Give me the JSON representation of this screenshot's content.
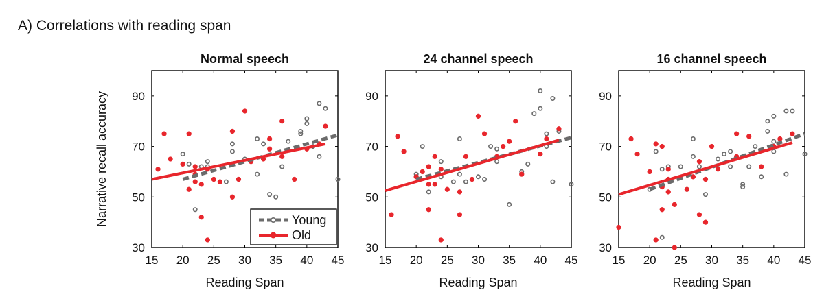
{
  "figure": {
    "heading": "A) Correlations with reading span"
  },
  "colors": {
    "young": "#6b6b6b",
    "old": "#e8262c",
    "axis": "#000000"
  },
  "chart_data": [
    {
      "type": "scatter",
      "title": "Normal speech",
      "xlabel": "Reading Span",
      "ylabel": "Narrative recall accuracy",
      "xlim": [
        15,
        45
      ],
      "ylim": [
        30,
        100
      ],
      "xticks": [
        15,
        20,
        25,
        30,
        35,
        40,
        45
      ],
      "yticks": [
        30,
        50,
        70,
        90
      ],
      "legend": {
        "position": "bottom-right",
        "entries": [
          "Young",
          "Old"
        ]
      },
      "series": [
        {
          "name": "Young",
          "marker": "open-circle",
          "points": [
            [
              20,
              67
            ],
            [
              21,
              63
            ],
            [
              22,
              45
            ],
            [
              23,
              62
            ],
            [
              24,
              62
            ],
            [
              24,
              64
            ],
            [
              26,
              56
            ],
            [
              27,
              56
            ],
            [
              28,
              68
            ],
            [
              28,
              71
            ],
            [
              29,
              57
            ],
            [
              30,
              65
            ],
            [
              32,
              59
            ],
            [
              32,
              73
            ],
            [
              33,
              71
            ],
            [
              34,
              51
            ],
            [
              35,
              50
            ],
            [
              36,
              62
            ],
            [
              37,
              72
            ],
            [
              39,
              75
            ],
            [
              39,
              76
            ],
            [
              40,
              79
            ],
            [
              40,
              81
            ],
            [
              41,
              70
            ],
            [
              42,
              66
            ],
            [
              42,
              87
            ],
            [
              43,
              85
            ],
            [
              45,
              57
            ]
          ],
          "fit": {
            "x": [
              20,
              45
            ],
            "y": [
              57,
              74.5
            ]
          }
        },
        {
          "name": "Old",
          "marker": "filled-circle",
          "points": [
            [
              16,
              61
            ],
            [
              17,
              75
            ],
            [
              18,
              65
            ],
            [
              20,
              63
            ],
            [
              21,
              75
            ],
            [
              21,
              53
            ],
            [
              22,
              59
            ],
            [
              22,
              62
            ],
            [
              22,
              56
            ],
            [
              23,
              55
            ],
            [
              23,
              42
            ],
            [
              24,
              33
            ],
            [
              24,
              61
            ],
            [
              25,
              57
            ],
            [
              26,
              56
            ],
            [
              28,
              50
            ],
            [
              29,
              57
            ],
            [
              28,
              76
            ],
            [
              30,
              84
            ],
            [
              31,
              64
            ],
            [
              33,
              65
            ],
            [
              34,
              69
            ],
            [
              34,
              73
            ],
            [
              36,
              80
            ],
            [
              36,
              66
            ],
            [
              38,
              57
            ],
            [
              40,
              69
            ],
            [
              42,
              71
            ],
            [
              43,
              78
            ]
          ],
          "fit": {
            "x": [
              15,
              43
            ],
            "y": [
              57,
              71
            ]
          }
        }
      ]
    },
    {
      "type": "scatter",
      "title": "24 channel speech",
      "xlabel": "Reading Span",
      "ylabel": "",
      "xlim": [
        15,
        45
      ],
      "ylim": [
        30,
        100
      ],
      "xticks": [
        15,
        20,
        25,
        30,
        35,
        40,
        45
      ],
      "yticks": [
        30,
        50,
        70,
        90
      ],
      "series": [
        {
          "name": "Young",
          "marker": "open-circle",
          "points": [
            [
              20,
              59
            ],
            [
              21,
              70
            ],
            [
              22,
              52
            ],
            [
              22,
              58
            ],
            [
              24,
              58
            ],
            [
              24,
              64
            ],
            [
              26,
              56
            ],
            [
              27,
              59
            ],
            [
              27,
              73
            ],
            [
              28,
              56
            ],
            [
              30,
              58
            ],
            [
              31,
              57
            ],
            [
              32,
              70
            ],
            [
              33,
              69
            ],
            [
              33,
              64
            ],
            [
              35,
              47
            ],
            [
              37,
              60
            ],
            [
              38,
              63
            ],
            [
              39,
              83
            ],
            [
              40,
              67
            ],
            [
              40,
              85
            ],
            [
              40,
              92
            ],
            [
              41,
              70
            ],
            [
              41,
              75
            ],
            [
              42,
              56
            ],
            [
              42,
              89
            ],
            [
              43,
              76
            ],
            [
              45,
              55
            ]
          ],
          "fit": {
            "x": [
              20,
              45
            ],
            "y": [
              57,
              73.5
            ]
          }
        },
        {
          "name": "Old",
          "marker": "filled-circle",
          "points": [
            [
              16,
              43
            ],
            [
              17,
              74
            ],
            [
              18,
              68
            ],
            [
              20,
              58
            ],
            [
              21,
              60
            ],
            [
              22,
              45
            ],
            [
              22,
              62
            ],
            [
              22,
              55
            ],
            [
              23,
              55
            ],
            [
              23,
              66
            ],
            [
              24,
              33
            ],
            [
              24,
              61
            ],
            [
              25,
              53
            ],
            [
              27,
              43
            ],
            [
              27,
              52
            ],
            [
              28,
              66
            ],
            [
              29,
              57
            ],
            [
              30,
              82
            ],
            [
              31,
              75
            ],
            [
              33,
              66
            ],
            [
              34,
              70
            ],
            [
              35,
              72
            ],
            [
              36,
              80
            ],
            [
              37,
              59
            ],
            [
              40,
              67
            ],
            [
              41,
              73
            ],
            [
              43,
              77
            ]
          ],
          "fit": {
            "x": [
              15,
              43
            ],
            "y": [
              52.5,
              72.5
            ]
          }
        }
      ]
    },
    {
      "type": "scatter",
      "title": "16 channel speech",
      "xlabel": "Reading Span",
      "ylabel": "",
      "xlim": [
        15,
        45
      ],
      "ylim": [
        30,
        100
      ],
      "xticks": [
        15,
        20,
        25,
        30,
        35,
        40,
        45
      ],
      "yticks": [
        30,
        50,
        70,
        90
      ],
      "series": [
        {
          "name": "Young",
          "marker": "open-circle",
          "points": [
            [
              20,
              53
            ],
            [
              21,
              68
            ],
            [
              22,
              34
            ],
            [
              22,
              61
            ],
            [
              23,
              57
            ],
            [
              23,
              62
            ],
            [
              25,
              62
            ],
            [
              26,
              53
            ],
            [
              27,
              66
            ],
            [
              27,
              73
            ],
            [
              28,
              62
            ],
            [
              29,
              51
            ],
            [
              31,
              65
            ],
            [
              32,
              67
            ],
            [
              33,
              68
            ],
            [
              33,
              62
            ],
            [
              35,
              55
            ],
            [
              35,
              54
            ],
            [
              36,
              62
            ],
            [
              37,
              70
            ],
            [
              38,
              58
            ],
            [
              39,
              76
            ],
            [
              39,
              80
            ],
            [
              40,
              82
            ],
            [
              40,
              68
            ],
            [
              40,
              72
            ],
            [
              42,
              59
            ],
            [
              42,
              84
            ],
            [
              43,
              84
            ],
            [
              45,
              67
            ]
          ],
          "fit": {
            "x": [
              20,
              45
            ],
            "y": [
              53,
              75
            ]
          }
        },
        {
          "name": "Old",
          "marker": "filled-circle",
          "points": [
            [
              15,
              38
            ],
            [
              17,
              73
            ],
            [
              18,
              67
            ],
            [
              20,
              60
            ],
            [
              21,
              33
            ],
            [
              21,
              71
            ],
            [
              22,
              54
            ],
            [
              22,
              45
            ],
            [
              22,
              70
            ],
            [
              23,
              52
            ],
            [
              23,
              61
            ],
            [
              23,
              57
            ],
            [
              24,
              47
            ],
            [
              24,
              30
            ],
            [
              26,
              53
            ],
            [
              27,
              58
            ],
            [
              28,
              64
            ],
            [
              28,
              43
            ],
            [
              29,
              40
            ],
            [
              29,
              57
            ],
            [
              30,
              70
            ],
            [
              31,
              61
            ],
            [
              34,
              66
            ],
            [
              34,
              75
            ],
            [
              36,
              74
            ],
            [
              38,
              62
            ],
            [
              40,
              70
            ],
            [
              41,
              73
            ],
            [
              43,
              75
            ]
          ],
          "fit": {
            "x": [
              15,
              43
            ],
            "y": [
              51,
              71.5
            ]
          }
        }
      ]
    }
  ]
}
